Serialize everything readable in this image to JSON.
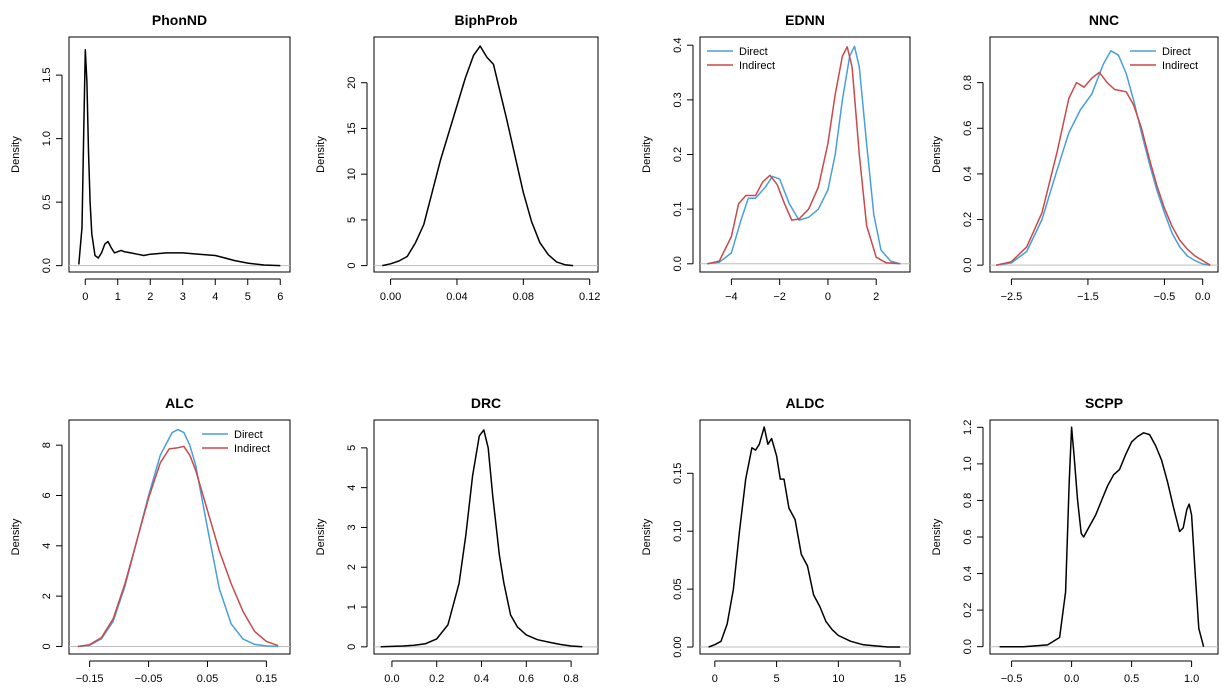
{
  "chart_data": [
    {
      "type": "line",
      "title": "PhonND",
      "ylabel": "Density",
      "xlim": [
        -0.5,
        6.3
      ],
      "ylim": [
        -0.05,
        1.8
      ],
      "xticks": [
        0,
        1,
        2,
        3,
        4,
        5,
        6
      ],
      "xtick_labels": [
        "0",
        "1",
        "2",
        "3",
        "4",
        "5",
        "6"
      ],
      "yticks": [
        0.0,
        0.5,
        1.0,
        1.5
      ],
      "ytick_labels": [
        "0.0",
        "0.5",
        "1.0",
        "1.5"
      ],
      "legend": false,
      "series": [
        {
          "color": "#000000",
          "x": [
            -0.2,
            -0.1,
            -0.05,
            0,
            0.05,
            0.1,
            0.15,
            0.2,
            0.3,
            0.4,
            0.5,
            0.6,
            0.7,
            0.8,
            0.9,
            1.0,
            1.1,
            1.2,
            1.4,
            1.6,
            1.8,
            2.0,
            2.5,
            3.0,
            3.5,
            4.0,
            4.3,
            4.6,
            5.0,
            5.5,
            6.0
          ],
          "y": [
            0.01,
            0.3,
            1.0,
            1.7,
            1.45,
            0.9,
            0.5,
            0.25,
            0.08,
            0.06,
            0.1,
            0.17,
            0.19,
            0.14,
            0.1,
            0.11,
            0.12,
            0.11,
            0.1,
            0.09,
            0.08,
            0.09,
            0.1,
            0.1,
            0.09,
            0.08,
            0.06,
            0.04,
            0.02,
            0.005,
            0.0
          ]
        }
      ]
    },
    {
      "type": "line",
      "title": "BiphProb",
      "ylabel": "Density",
      "xlim": [
        -0.01,
        0.125
      ],
      "ylim": [
        -0.7,
        25
      ],
      "xticks": [
        0.0,
        0.04,
        0.08,
        0.12
      ],
      "xtick_labels": [
        "0.00",
        "0.04",
        "0.08",
        "0.12"
      ],
      "yticks": [
        0,
        5,
        10,
        15,
        20
      ],
      "ytick_labels": [
        "0",
        "5",
        "10",
        "15",
        "20"
      ],
      "legend": false,
      "series": [
        {
          "color": "#000000",
          "x": [
            -0.005,
            0.0,
            0.005,
            0.01,
            0.015,
            0.02,
            0.025,
            0.03,
            0.035,
            0.04,
            0.045,
            0.05,
            0.054,
            0.058,
            0.062,
            0.066,
            0.07,
            0.075,
            0.08,
            0.085,
            0.09,
            0.095,
            0.1,
            0.105,
            0.11
          ],
          "y": [
            0.0,
            0.2,
            0.5,
            1.0,
            2.5,
            4.5,
            8.0,
            11.5,
            14.5,
            17.5,
            20.5,
            23.0,
            24.0,
            22.8,
            22.0,
            19.0,
            16.0,
            12.0,
            8.0,
            4.8,
            2.5,
            1.2,
            0.4,
            0.1,
            0.0
          ]
        }
      ]
    },
    {
      "type": "line",
      "title": "EDNN",
      "ylabel": "Density",
      "xlim": [
        -5.3,
        3.4
      ],
      "ylim": [
        -0.015,
        0.415
      ],
      "xticks": [
        -4,
        -2,
        0,
        2
      ],
      "xtick_labels": [
        "−4",
        "−2",
        "0",
        "2"
      ],
      "yticks": [
        0.0,
        0.1,
        0.2,
        0.3,
        0.4
      ],
      "ytick_labels": [
        "0.0",
        "0.1",
        "0.2",
        "0.3",
        "0.4"
      ],
      "legend": true,
      "legend_position": "top-left",
      "series": [
        {
          "name": "Direct",
          "color": "#4a9fd8",
          "x": [
            -5.0,
            -4.5,
            -4.0,
            -3.6,
            -3.3,
            -3.0,
            -2.6,
            -2.3,
            -2.0,
            -1.6,
            -1.2,
            -0.8,
            -0.4,
            0.0,
            0.3,
            0.6,
            0.9,
            1.1,
            1.3,
            1.6,
            1.9,
            2.2,
            2.6,
            3.0
          ],
          "y": [
            0.0,
            0.003,
            0.02,
            0.08,
            0.12,
            0.12,
            0.14,
            0.16,
            0.155,
            0.11,
            0.08,
            0.085,
            0.1,
            0.135,
            0.2,
            0.3,
            0.38,
            0.398,
            0.36,
            0.22,
            0.09,
            0.025,
            0.005,
            0.0
          ]
        },
        {
          "name": "Indirect",
          "color": "#c94a4a",
          "x": [
            -5.0,
            -4.5,
            -4.0,
            -3.7,
            -3.4,
            -3.0,
            -2.7,
            -2.4,
            -2.1,
            -1.8,
            -1.5,
            -1.2,
            -0.8,
            -0.4,
            0.0,
            0.3,
            0.6,
            0.8,
            1.0,
            1.3,
            1.6,
            2.0,
            2.4,
            3.0
          ],
          "y": [
            0.0,
            0.005,
            0.05,
            0.11,
            0.125,
            0.125,
            0.15,
            0.162,
            0.145,
            0.11,
            0.08,
            0.082,
            0.1,
            0.14,
            0.22,
            0.31,
            0.38,
            0.397,
            0.36,
            0.2,
            0.07,
            0.012,
            0.002,
            0.0
          ]
        }
      ]
    },
    {
      "type": "line",
      "title": "NNC",
      "ylabel": "Density",
      "xlim": [
        -2.78,
        0.2
      ],
      "ylim": [
        -0.03,
        1.0
      ],
      "xticks": [
        -2.5,
        -1.5,
        -0.5,
        0.0
      ],
      "xtick_labels": [
        "−2.5",
        "−1.5",
        "−0.5",
        "0.0"
      ],
      "yticks": [
        0.0,
        0.2,
        0.4,
        0.6,
        0.8
      ],
      "ytick_labels": [
        "0.0",
        "0.2",
        "0.4",
        "0.6",
        "0.8"
      ],
      "legend": true,
      "legend_position": "top-right",
      "series": [
        {
          "name": "Direct",
          "color": "#4a9fd8",
          "x": [
            -2.7,
            -2.5,
            -2.3,
            -2.1,
            -1.9,
            -1.75,
            -1.6,
            -1.45,
            -1.3,
            -1.2,
            -1.1,
            -1.0,
            -0.9,
            -0.8,
            -0.7,
            -0.6,
            -0.5,
            -0.4,
            -0.3,
            -0.2,
            -0.1,
            0.0,
            0.1
          ],
          "y": [
            0.0,
            0.01,
            0.06,
            0.2,
            0.42,
            0.58,
            0.68,
            0.75,
            0.88,
            0.94,
            0.92,
            0.84,
            0.72,
            0.58,
            0.45,
            0.33,
            0.23,
            0.14,
            0.08,
            0.04,
            0.02,
            0.005,
            0.0
          ]
        },
        {
          "name": "Indirect",
          "color": "#c94a4a",
          "x": [
            -2.7,
            -2.5,
            -2.3,
            -2.1,
            -1.9,
            -1.75,
            -1.65,
            -1.55,
            -1.45,
            -1.35,
            -1.25,
            -1.15,
            -1.0,
            -0.9,
            -0.8,
            -0.7,
            -0.6,
            -0.5,
            -0.4,
            -0.3,
            -0.2,
            -0.1,
            0.0,
            0.1
          ],
          "y": [
            0.0,
            0.015,
            0.08,
            0.23,
            0.5,
            0.73,
            0.8,
            0.78,
            0.82,
            0.845,
            0.8,
            0.77,
            0.76,
            0.7,
            0.6,
            0.47,
            0.35,
            0.25,
            0.17,
            0.11,
            0.07,
            0.04,
            0.02,
            0.0
          ]
        }
      ]
    },
    {
      "type": "line",
      "title": "ALC",
      "ylabel": "Density",
      "xlim": [
        -0.185,
        0.19
      ],
      "ylim": [
        -0.3,
        9.0
      ],
      "xticks": [
        -0.15,
        -0.05,
        0.05,
        0.15
      ],
      "xtick_labels": [
        "−0.15",
        "−0.05",
        "0.05",
        "0.15"
      ],
      "yticks": [
        0,
        2,
        4,
        6,
        8
      ],
      "ytick_labels": [
        "0",
        "2",
        "4",
        "6",
        "8"
      ],
      "legend": true,
      "legend_position": "top-right",
      "series": [
        {
          "name": "Direct",
          "color": "#4a9fd8",
          "x": [
            -0.17,
            -0.15,
            -0.13,
            -0.11,
            -0.09,
            -0.07,
            -0.05,
            -0.03,
            -0.01,
            0.0,
            0.01,
            0.02,
            0.03,
            0.05,
            0.07,
            0.09,
            0.11,
            0.13,
            0.15,
            0.17
          ],
          "y": [
            0.0,
            0.05,
            0.3,
            1.0,
            2.4,
            4.2,
            6.0,
            7.6,
            8.5,
            8.62,
            8.5,
            8.0,
            7.2,
            4.7,
            2.3,
            0.9,
            0.3,
            0.08,
            0.02,
            0.0
          ]
        },
        {
          "name": "Indirect",
          "color": "#c94a4a",
          "x": [
            -0.17,
            -0.15,
            -0.13,
            -0.11,
            -0.09,
            -0.07,
            -0.05,
            -0.03,
            -0.015,
            0.0,
            0.01,
            0.02,
            0.03,
            0.05,
            0.07,
            0.09,
            0.11,
            0.13,
            0.15,
            0.17
          ],
          "y": [
            0.0,
            0.07,
            0.35,
            1.1,
            2.5,
            4.2,
            5.9,
            7.3,
            7.85,
            7.9,
            7.95,
            7.6,
            7.0,
            5.4,
            3.8,
            2.5,
            1.4,
            0.6,
            0.2,
            0.03
          ]
        }
      ]
    },
    {
      "type": "line",
      "title": "DRC",
      "ylabel": "Density",
      "xlim": [
        -0.08,
        0.92
      ],
      "ylim": [
        -0.18,
        5.7
      ],
      "xticks": [
        0.0,
        0.2,
        0.4,
        0.6,
        0.8
      ],
      "xtick_labels": [
        "0.0",
        "0.2",
        "0.4",
        "0.6",
        "0.8"
      ],
      "yticks": [
        0,
        1,
        2,
        3,
        4,
        5
      ],
      "ytick_labels": [
        "0",
        "1",
        "2",
        "3",
        "4",
        "5"
      ],
      "legend": false,
      "series": [
        {
          "color": "#000000",
          "x": [
            -0.05,
            0.0,
            0.05,
            0.1,
            0.15,
            0.2,
            0.25,
            0.3,
            0.33,
            0.36,
            0.39,
            0.41,
            0.43,
            0.45,
            0.48,
            0.5,
            0.53,
            0.56,
            0.6,
            0.65,
            0.7,
            0.75,
            0.8,
            0.85
          ],
          "y": [
            0.0,
            0.01,
            0.02,
            0.04,
            0.08,
            0.2,
            0.55,
            1.6,
            2.8,
            4.3,
            5.3,
            5.45,
            5.0,
            3.8,
            2.3,
            1.6,
            0.8,
            0.5,
            0.3,
            0.18,
            0.12,
            0.06,
            0.02,
            0.0
          ]
        }
      ]
    },
    {
      "type": "line",
      "title": "ALDC",
      "ylabel": "Density",
      "xlim": [
        -1.2,
        15.8
      ],
      "ylim": [
        -0.006,
        0.196
      ],
      "xticks": [
        0,
        5,
        10,
        15
      ],
      "xtick_labels": [
        "0",
        "5",
        "10",
        "15"
      ],
      "yticks": [
        0.0,
        0.05,
        0.1,
        0.15
      ],
      "ytick_labels": [
        "0.00",
        "0.05",
        "0.10",
        "0.15"
      ],
      "legend": false,
      "series": [
        {
          "color": "#000000",
          "x": [
            -0.5,
            0.0,
            0.5,
            1.0,
            1.5,
            2.0,
            2.5,
            3.0,
            3.3,
            3.6,
            4.0,
            4.3,
            4.6,
            5.0,
            5.3,
            5.6,
            6.0,
            6.5,
            7.0,
            7.5,
            8.0,
            8.5,
            9.0,
            9.5,
            10.0,
            11.0,
            12.0,
            13.0,
            14.0,
            15.0
          ],
          "y": [
            0.0,
            0.002,
            0.005,
            0.02,
            0.05,
            0.1,
            0.145,
            0.172,
            0.17,
            0.175,
            0.19,
            0.175,
            0.18,
            0.165,
            0.145,
            0.145,
            0.12,
            0.11,
            0.08,
            0.07,
            0.045,
            0.035,
            0.022,
            0.015,
            0.01,
            0.005,
            0.002,
            0.001,
            0.0,
            0.0
          ]
        }
      ]
    },
    {
      "type": "line",
      "title": "SCPP",
      "ylabel": "Density",
      "xlim": [
        -0.68,
        1.22
      ],
      "ylim": [
        -0.04,
        1.24
      ],
      "xticks": [
        -0.5,
        0.0,
        0.5,
        1.0
      ],
      "xtick_labels": [
        "−0.5",
        "0.0",
        "0.5",
        "1.0"
      ],
      "yticks": [
        0.0,
        0.2,
        0.4,
        0.6,
        0.8,
        1.0,
        1.2
      ],
      "ytick_labels": [
        "0.0",
        "0.2",
        "0.4",
        "0.6",
        "0.8",
        "1.0",
        "1.2"
      ],
      "legend": false,
      "series": [
        {
          "color": "#000000",
          "x": [
            -0.6,
            -0.4,
            -0.2,
            -0.1,
            -0.05,
            -0.02,
            0.0,
            0.02,
            0.05,
            0.08,
            0.1,
            0.15,
            0.2,
            0.25,
            0.3,
            0.35,
            0.4,
            0.45,
            0.5,
            0.55,
            0.6,
            0.65,
            0.7,
            0.75,
            0.8,
            0.85,
            0.9,
            0.93,
            0.96,
            0.98,
            1.0,
            1.03,
            1.06,
            1.1
          ],
          "y": [
            0.0,
            0.0,
            0.01,
            0.05,
            0.3,
            0.9,
            1.2,
            1.05,
            0.8,
            0.62,
            0.6,
            0.66,
            0.72,
            0.8,
            0.88,
            0.94,
            0.97,
            1.05,
            1.12,
            1.15,
            1.17,
            1.16,
            1.1,
            1.02,
            0.9,
            0.76,
            0.63,
            0.65,
            0.75,
            0.78,
            0.72,
            0.4,
            0.1,
            0.0
          ]
        }
      ]
    }
  ]
}
